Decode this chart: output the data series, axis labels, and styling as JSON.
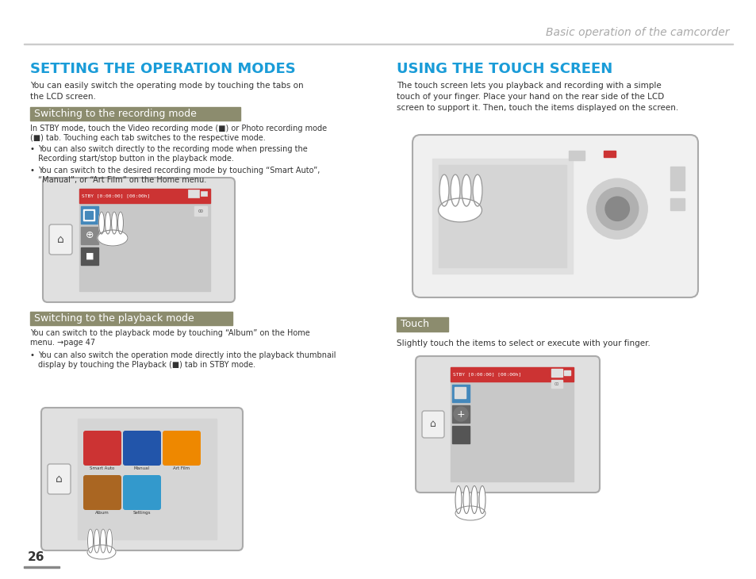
{
  "page_bg": "#ffffff",
  "header_text": "Basic operation of the camcorder",
  "header_color": "#aaaaaa",
  "left_title": "SETTING THE OPERATION MODES",
  "left_title_color": "#1a9cd8",
  "left_intro_line1": "You can easily switch the operating mode by touching the tabs on",
  "left_intro_line2": "the LCD screen.",
  "section1_label": "Switching to the recording mode",
  "section1_bg": "#8c8c6e",
  "section1_text_color": "#ffffff",
  "section1_body_line1": "In STBY mode, touch the Video recording mode (■) or Photo recording mode",
  "section1_body_line2": "(■) tab. Touching each tab switches to the respective mode.",
  "section1_bullet1_line1": "You can also switch directly to the recording mode when pressing the",
  "section1_bullet1_line2": "Recording start/stop button in the playback mode.",
  "section1_bullet2_line1": "You can switch to the desired recording mode by touching “Smart Auto”,",
  "section1_bullet2_line2": "“Manual”, or “Art Film” on the Home menu.",
  "section2_label": "Switching to the playback mode",
  "section2_bg": "#8c8c6e",
  "section2_text_color": "#ffffff",
  "section2_body_line1": "You can switch to the playback mode by touching “Album” on the Home",
  "section2_body_line2": "menu. →page 47",
  "section2_bullet1_line1": "You can also switch the operation mode directly into the playback thumbnail",
  "section2_bullet1_line2": "display by touching the Playback (■) tab in STBY mode.",
  "right_title": "USING THE TOUCH SCREEN",
  "right_title_color": "#1a9cd8",
  "right_intro_line1": "The touch screen lets you playback and recording with a simple",
  "right_intro_line2": "touch of your finger. Place your hand on the rear side of the LCD",
  "right_intro_line3": "screen to support it. Then, touch the items displayed on the screen.",
  "touch_label": "Touch",
  "touch_label_bg": "#8c8c6e",
  "touch_label_color": "#ffffff",
  "touch_body": "Slightly touch the items to select or execute with your finger.",
  "page_number": "26",
  "page_number_color": "#333333",
  "body_color": "#333333",
  "bullet_color": "#333333",
  "divider_color": "#cccccc",
  "device_bg": "#e0e0e0",
  "device_border": "#aaaaaa",
  "screen_bg": "#c8c8c8",
  "screen_dark": "#b0b0b0",
  "red_bar": "#cc3333",
  "blue_tab": "#4488bb",
  "hand_color": "#ffffff",
  "hand_border": "#888888"
}
